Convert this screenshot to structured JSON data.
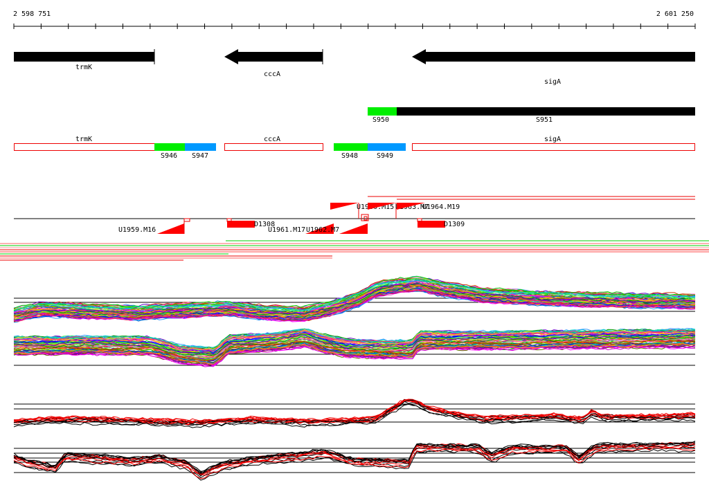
{
  "coordinates": {
    "start_label": "2 598 751",
    "end_label": "2 601 250",
    "start": 2598751,
    "end": 2601250
  },
  "colors": {
    "gene": "#000000",
    "operon": "#000000",
    "utr": "#00ee00",
    "cds_utr": "#0099ff",
    "box": "#ee0000",
    "probe": "#ff0000",
    "trace_black": "#000000",
    "trace_red": "#ff0000"
  },
  "genes": [
    {
      "label": "trmK",
      "start": 2598751,
      "end": 2599268,
      "strand": "+"
    },
    {
      "label": "cccA",
      "start": 2599515,
      "end": 2599874,
      "strand": "-"
    },
    {
      "label": "sigA",
      "start": 2600248,
      "end": 2601250,
      "strand": "-"
    }
  ],
  "operons": [
    {
      "label": "S950",
      "start": 2600032,
      "end": 2600138,
      "color": "#00ee00"
    },
    {
      "label": "S951",
      "start": 2600138,
      "end": 2601250,
      "color": "#000000"
    }
  ],
  "features": [
    {
      "label": "trmK",
      "type": "box",
      "start": 2598751,
      "end": 2599268
    },
    {
      "label": "S946",
      "type": "utr",
      "start": 2599268,
      "end": 2599381
    },
    {
      "label": "S947",
      "type": "cds",
      "start": 2599381,
      "end": 2599497
    },
    {
      "label": "cccA",
      "type": "box",
      "start": 2599528,
      "end": 2599889
    },
    {
      "label": "S948",
      "type": "utr",
      "start": 2599911,
      "end": 2600035
    },
    {
      "label": "S949",
      "type": "cds",
      "start": 2600035,
      "end": 2600172
    },
    {
      "label": "sigA",
      "type": "box",
      "start": 2600184,
      "end": 2601250
    }
  ],
  "probes": [
    {
      "label": "U1959.M16"
    },
    {
      "label": "D1308"
    },
    {
      "label": "U1961.M17"
    },
    {
      "label": "U1962.M7"
    },
    {
      "label": "U1960.M15"
    },
    {
      "label": "U1963.M7"
    },
    {
      "label": "U1964.M19"
    },
    {
      "label": "D1309"
    }
  ]
}
